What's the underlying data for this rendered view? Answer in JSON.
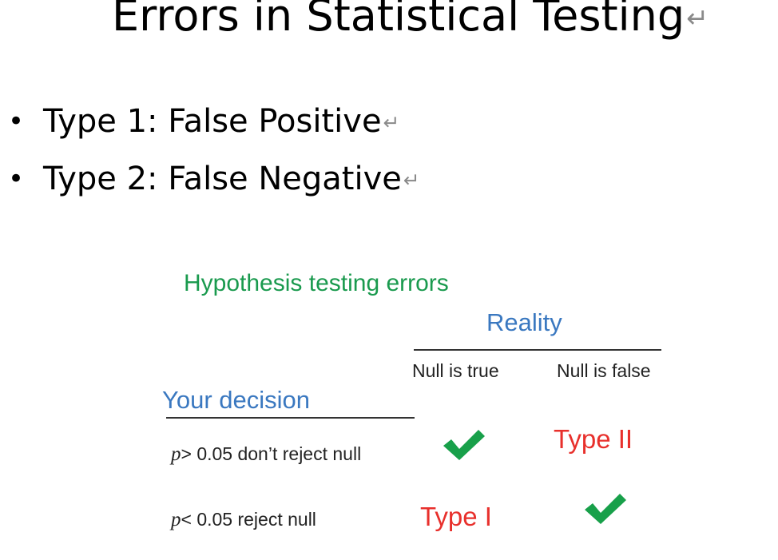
{
  "slide": {
    "title": "Errors in Statistical Testing",
    "return_mark": "↵",
    "bullet_symbol": "•",
    "bullets": [
      {
        "text": "Type 1: False Positive"
      },
      {
        "text": "Type 2: False Negative"
      }
    ]
  },
  "figure": {
    "title": "Hypothesis testing errors",
    "reality_label": "Reality",
    "columns": [
      "Null is true",
      "Null is false"
    ],
    "decision_label": "Your decision",
    "rows": [
      {
        "p_symbol": "p",
        "condition": "> 0.05 don’t reject null",
        "cells": [
          "check",
          "Type II"
        ]
      },
      {
        "p_symbol": "p",
        "condition": "< 0.05 reject null",
        "cells": [
          "Type I",
          "check"
        ]
      }
    ],
    "colors": {
      "title_green": "#1a9a4e",
      "label_blue": "#3a78c0",
      "error_red": "#e8302c",
      "check_green": "#18a04a"
    }
  }
}
